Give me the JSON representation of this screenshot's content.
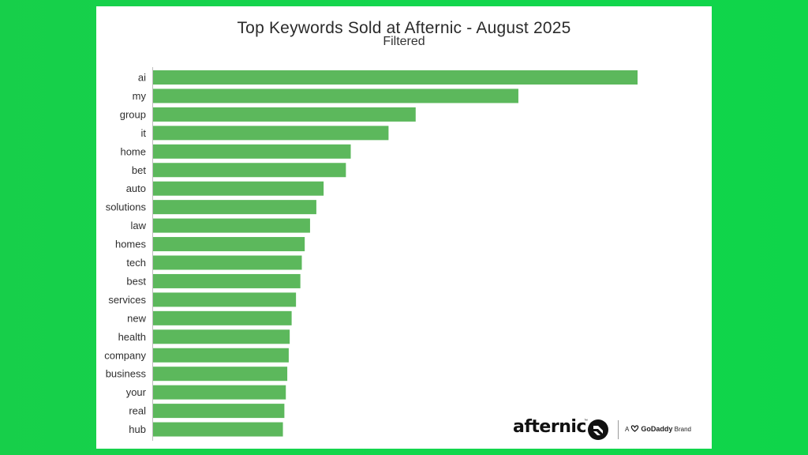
{
  "chart_data": {
    "type": "bar",
    "orientation": "horizontal",
    "title": "Top Keywords Sold at Afternic - August 2025",
    "subtitle": "Filtered",
    "categories": [
      "ai",
      "my",
      "group",
      "it",
      "home",
      "bet",
      "auto",
      "solutions",
      "law",
      "homes",
      "tech",
      "best",
      "services",
      "new",
      "health",
      "company",
      "business",
      "your",
      "real",
      "hub"
    ],
    "values": [
      100,
      75.4,
      54.2,
      48.6,
      40.8,
      39.8,
      35.2,
      33.7,
      32.4,
      31.3,
      30.7,
      30.4,
      29.5,
      28.6,
      28.2,
      28.0,
      27.7,
      27.4,
      27.1,
      26.8
    ],
    "xlim": [
      0,
      100
    ],
    "grid": false,
    "legend": "none",
    "bar_color": "#5cb85c"
  },
  "branding": {
    "logo_text": "afternic",
    "tm": "™",
    "sub_prefix": "A",
    "sub_brand": "GoDaddy",
    "sub_suffix": "Brand",
    "logo_icon": "afternic-circle-logo-icon",
    "godaddy_icon": "godaddy-logo-icon"
  },
  "colors": {
    "background": "#13d64d",
    "panel": "#ffffff",
    "axis": "#bdbdbd"
  }
}
